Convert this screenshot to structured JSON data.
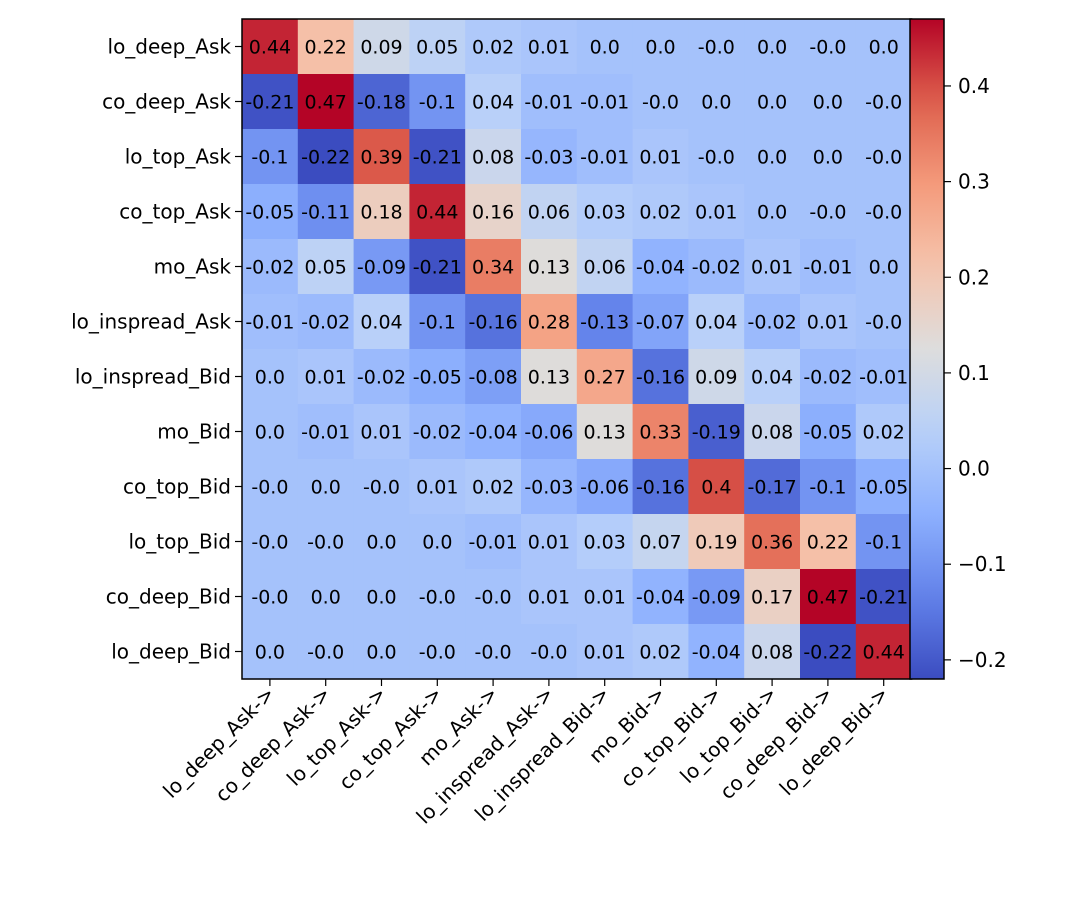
{
  "chart_data": {
    "type": "heatmap",
    "colormap": "coolwarm",
    "rows": [
      "lo_deep_Ask",
      "co_deep_Ask",
      "lo_top_Ask",
      "co_top_Ask",
      "mo_Ask",
      "lo_inspread_Ask",
      "lo_inspread_Bid",
      "mo_Bid",
      "co_top_Bid",
      "lo_top_Bid",
      "co_deep_Bid",
      "lo_deep_Bid"
    ],
    "columns": [
      "lo_deep_Ask->",
      "co_deep_Ask->",
      "lo_top_Ask->",
      "co_top_Ask->",
      "mo_Ask->",
      "lo_inspread_Ask->",
      "lo_inspread_Bid->",
      "mo_Bid->",
      "co_top_Bid->",
      "lo_top_Bid->",
      "co_deep_Bid->",
      "lo_deep_Bid->"
    ],
    "values": [
      [
        0.44,
        0.22,
        0.09,
        0.05,
        0.02,
        0.01,
        0.0,
        0.0,
        -0.0,
        0.0,
        -0.0,
        0.0
      ],
      [
        -0.21,
        0.47,
        -0.18,
        -0.1,
        0.04,
        -0.01,
        -0.01,
        -0.0,
        0.0,
        0.0,
        0.0,
        -0.0
      ],
      [
        -0.1,
        -0.22,
        0.39,
        -0.21,
        0.08,
        -0.03,
        -0.01,
        0.01,
        -0.0,
        0.0,
        0.0,
        -0.0
      ],
      [
        -0.05,
        -0.11,
        0.18,
        0.44,
        0.16,
        0.06,
        0.03,
        0.02,
        0.01,
        0.0,
        -0.0,
        -0.0
      ],
      [
        -0.02,
        0.05,
        -0.09,
        -0.21,
        0.34,
        0.13,
        0.06,
        -0.04,
        -0.02,
        0.01,
        -0.01,
        0.0
      ],
      [
        -0.01,
        -0.02,
        0.04,
        -0.1,
        -0.16,
        0.28,
        -0.13,
        -0.07,
        0.04,
        -0.02,
        0.01,
        -0.0
      ],
      [
        0.0,
        0.01,
        -0.02,
        -0.05,
        -0.08,
        0.13,
        0.27,
        -0.16,
        0.09,
        0.04,
        -0.02,
        -0.01
      ],
      [
        0.0,
        -0.01,
        0.01,
        -0.02,
        -0.04,
        -0.06,
        0.13,
        0.33,
        -0.19,
        0.08,
        -0.05,
        0.02
      ],
      [
        -0.0,
        0.0,
        -0.0,
        0.01,
        0.02,
        -0.03,
        -0.06,
        -0.16,
        0.4,
        -0.17,
        -0.1,
        -0.05
      ],
      [
        -0.0,
        -0.0,
        0.0,
        0.0,
        -0.01,
        0.01,
        0.03,
        0.07,
        0.19,
        0.36,
        0.22,
        -0.1
      ],
      [
        -0.0,
        0.0,
        0.0,
        -0.0,
        -0.0,
        0.01,
        0.01,
        -0.04,
        -0.09,
        0.17,
        0.47,
        -0.21
      ],
      [
        0.0,
        -0.0,
        0.0,
        -0.0,
        -0.0,
        -0.0,
        0.01,
        0.02,
        -0.04,
        0.08,
        -0.22,
        0.44
      ]
    ],
    "vmin": -0.22,
    "vmax": 0.47,
    "colorbar": {
      "ticks": [
        -0.2,
        -0.1,
        0.0,
        0.1,
        0.2,
        0.3,
        0.4
      ],
      "tick_labels": [
        "−0.2",
        "−0.1",
        "0.0",
        "0.1",
        "0.2",
        "0.3",
        "0.4"
      ]
    },
    "title": "",
    "xlabel": "",
    "ylabel": ""
  }
}
